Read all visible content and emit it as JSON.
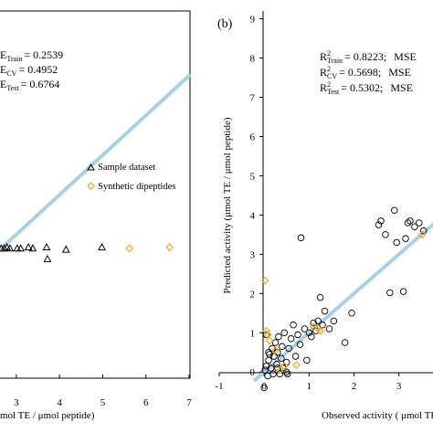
{
  "chart_data": [
    {
      "type": "scatter",
      "panel_label": "",
      "xlabel": "mol TE / μmol peptide)",
      "ylabel": "",
      "xlim": [
        2.6,
        7.0
      ],
      "ylim": [
        -0.6,
        9.2
      ],
      "x_ticks": [
        3,
        4,
        5,
        6,
        7
      ],
      "x_tick_labels": [
        "3",
        "4",
        "5",
        "6",
        "7"
      ],
      "stats": [
        {
          "label": "E",
          "sub": "Train",
          "value": "= 0.2539"
        },
        {
          "label": "E",
          "sub": "CV",
          "value": "= 0.4952"
        },
        {
          "label": "E",
          "sub": "Test",
          "value": "= 0.6764"
        }
      ],
      "legend": [
        {
          "marker": "triangle",
          "color": "#000000",
          "text": "Sample dataset"
        },
        {
          "marker": "diamond",
          "color": "#f5a623",
          "text": "Synthetic dipeptides"
        }
      ],
      "line": {
        "color": "#a8d0e6",
        "x": [
          2.6,
          7.0
        ],
        "y": [
          3.1,
          7.55
        ]
      },
      "series": [
        {
          "name": "Sample dataset",
          "marker": "triangle",
          "color": "#000000",
          "points": [
            [
              2.65,
              3.15
            ],
            [
              2.72,
              3.15
            ],
            [
              2.78,
              3.18
            ],
            [
              2.85,
              3.15
            ],
            [
              3.02,
              3.15
            ],
            [
              3.1,
              3.15
            ],
            [
              3.28,
              3.18
            ],
            [
              3.38,
              3.15
            ],
            [
              3.7,
              3.18
            ],
            [
              3.72,
              2.88
            ],
            [
              4.15,
              3.12
            ],
            [
              4.98,
              3.18
            ]
          ]
        },
        {
          "name": "Synthetic dipeptides",
          "marker": "diamond",
          "color": "#f5a623",
          "points": [
            [
              5.62,
              3.15
            ],
            [
              6.55,
              3.18
            ]
          ]
        }
      ]
    },
    {
      "type": "scatter",
      "panel_label": "(b)",
      "xlabel": "Observed activity ( μmol TE / μmol peptide)",
      "ylabel": "Predicted activity  (μmol TE / μmol peptide)",
      "xlim": [
        -1,
        3.8
      ],
      "ylim": [
        -0.6,
        9.2
      ],
      "x_ticks": [
        -1,
        0,
        1,
        2,
        3
      ],
      "x_tick_labels": [
        "-1",
        "0",
        "1",
        "2",
        "3"
      ],
      "y_ticks": [
        0,
        1,
        2,
        3,
        4,
        5,
        6,
        7,
        8,
        9
      ],
      "y_tick_labels": [
        "0",
        "1",
        "2",
        "3",
        "4",
        "5",
        "6",
        "7",
        "8",
        "9"
      ],
      "stats": [
        {
          "label": "R",
          "sup": "2",
          "sub": "Train",
          "value": "= 0.8223;",
          "extra": "MSE"
        },
        {
          "label": "R",
          "sup": "2",
          "sub": "CV",
          "value": "= 0.5698;",
          "extra": "MSE"
        },
        {
          "label": "R",
          "sup": "2",
          "sub": "Test",
          "value": "= 0.5302;",
          "extra": "MSE"
        }
      ],
      "line": {
        "color": "#a8d0e6",
        "x": [
          -0.2,
          3.8
        ],
        "y": [
          -0.2,
          3.8
        ]
      },
      "series": [
        {
          "name": "",
          "marker": "circle",
          "color": "#000000",
          "points": [
            [
              0.02,
              0.05
            ],
            [
              0.05,
              0.15
            ],
            [
              0.08,
              -0.1
            ],
            [
              0.1,
              0.3
            ],
            [
              0.12,
              0.45
            ],
            [
              0.15,
              0.1
            ],
            [
              0.18,
              0.6
            ],
            [
              0.2,
              -0.05
            ],
            [
              0.22,
              0.4
            ],
            [
              0.25,
              0.75
            ],
            [
              0.28,
              0.2
            ],
            [
              0.3,
              0.5
            ],
            [
              0.32,
              0.9
            ],
            [
              0.35,
              -0.05
            ],
            [
              0.38,
              0.35
            ],
            [
              0.4,
              0.65
            ],
            [
              0.42,
              0.1
            ],
            [
              0.45,
              1.0
            ],
            [
              0.5,
              0.25
            ],
            [
              0.52,
              -0.05
            ],
            [
              0.55,
              0.6
            ],
            [
              0.6,
              0.85
            ],
            [
              0.65,
              1.2
            ],
            [
              0.7,
              0.4
            ],
            [
              0.75,
              0.95
            ],
            [
              0.8,
              0.7
            ],
            [
              0.82,
              3.42
            ],
            [
              0.9,
              1.1
            ],
            [
              0.95,
              0.3
            ],
            [
              1.0,
              1.0
            ],
            [
              1.05,
              0.9
            ],
            [
              1.1,
              1.25
            ],
            [
              1.15,
              1.05
            ],
            [
              1.2,
              1.3
            ],
            [
              1.25,
              1.9
            ],
            [
              1.3,
              1.2
            ],
            [
              1.35,
              1.55
            ],
            [
              1.45,
              1.1
            ],
            [
              1.55,
              1.3
            ],
            [
              1.8,
              0.75
            ],
            [
              1.95,
              1.5
            ],
            [
              2.55,
              3.75
            ],
            [
              2.6,
              3.85
            ],
            [
              2.7,
              3.5
            ],
            [
              2.8,
              2.02
            ],
            [
              2.9,
              4.12
            ],
            [
              2.95,
              3.3
            ],
            [
              3.1,
              2.05
            ],
            [
              3.15,
              3.4
            ],
            [
              3.2,
              3.8
            ],
            [
              3.25,
              3.85
            ],
            [
              3.35,
              3.7
            ],
            [
              3.45,
              3.8
            ],
            [
              3.55,
              3.6
            ],
            [
              0.0,
              -0.4
            ],
            [
              0.05,
              0.95
            ],
            [
              0.1,
              0.5
            ],
            [
              0.5,
              0.0
            ],
            [
              0.3,
              0.1
            ]
          ]
        },
        {
          "name": "",
          "marker": "diamond",
          "color": "#f5a623",
          "points": [
            [
              0.02,
              2.33
            ],
            [
              0.05,
              1.05
            ],
            [
              0.08,
              0.95
            ],
            [
              0.12,
              0.8
            ],
            [
              0.25,
              0.55
            ],
            [
              0.35,
              0.05
            ],
            [
              0.45,
              0.15
            ],
            [
              0.72,
              0.18
            ],
            [
              1.1,
              1.15
            ],
            [
              1.2,
              1.1
            ],
            [
              1.25,
              1.05
            ],
            [
              3.52,
              3.5
            ]
          ]
        }
      ]
    }
  ]
}
